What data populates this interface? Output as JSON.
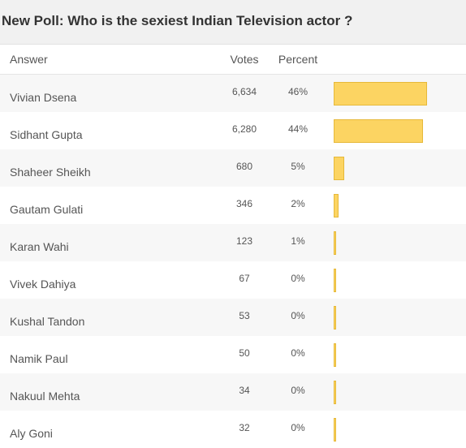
{
  "poll": {
    "title": "New Poll: Who is the sexiest Indian Television actor ?",
    "headers": {
      "answer": "Answer",
      "votes": "Votes",
      "percent": "Percent"
    },
    "bar_color": "#fcd462",
    "rows": [
      {
        "answer": "Vivian Dsena",
        "votes": "6,634",
        "percent": "46%",
        "share": 0.46
      },
      {
        "answer": "Sidhant Gupta",
        "votes": "6,280",
        "percent": "44%",
        "share": 0.44
      },
      {
        "answer": "Shaheer Sheikh",
        "votes": "680",
        "percent": "5%",
        "share": 0.05
      },
      {
        "answer": "Gautam Gulati",
        "votes": "346",
        "percent": "2%",
        "share": 0.024
      },
      {
        "answer": "Karan Wahi",
        "votes": "123",
        "percent": "1%",
        "share": 0.009
      },
      {
        "answer": "Vivek Dahiya",
        "votes": "67",
        "percent": "0%",
        "share": 0.0
      },
      {
        "answer": "Kushal Tandon",
        "votes": "53",
        "percent": "0%",
        "share": 0.0
      },
      {
        "answer": "Namik Paul",
        "votes": "50",
        "percent": "0%",
        "share": 0.0
      },
      {
        "answer": "Nakuul Mehta",
        "votes": "34",
        "percent": "0%",
        "share": 0.0
      },
      {
        "answer": "Aly Goni",
        "votes": "32",
        "percent": "0%",
        "share": 0.0
      }
    ]
  }
}
